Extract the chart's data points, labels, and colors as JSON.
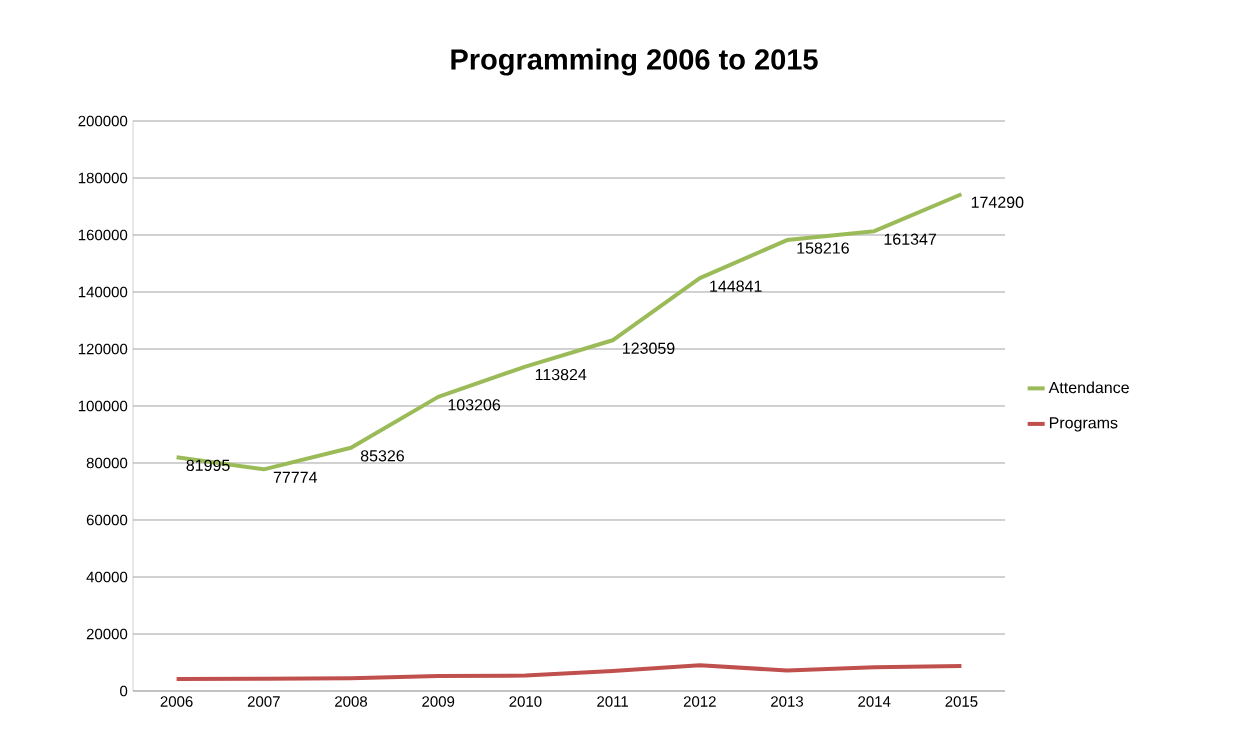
{
  "chart_data": {
    "type": "line",
    "title": "Programming 2006 to 2015",
    "categories": [
      "2006",
      "2007",
      "2008",
      "2009",
      "2010",
      "2011",
      "2012",
      "2013",
      "2014",
      "2015"
    ],
    "series": [
      {
        "name": "Attendance",
        "color": "#9bbb59",
        "values": [
          81995,
          77774,
          85326,
          103206,
          113824,
          123059,
          144841,
          158216,
          161347,
          174290
        ],
        "value_labels": [
          "81995",
          "77774",
          "85326",
          "103206",
          "113824",
          "123059",
          "144841",
          "158216",
          "161347",
          "174290"
        ]
      },
      {
        "name": "Programs",
        "color": "#c0504d",
        "values": [
          4200,
          4300,
          4500,
          5300,
          5400,
          7000,
          9000,
          7200,
          8300,
          8800
        ]
      }
    ],
    "ylim": [
      0,
      200000
    ],
    "yticks": [
      0,
      20000,
      40000,
      60000,
      80000,
      100000,
      120000,
      140000,
      160000,
      180000,
      200000
    ],
    "grid": "y",
    "legend": "right"
  }
}
